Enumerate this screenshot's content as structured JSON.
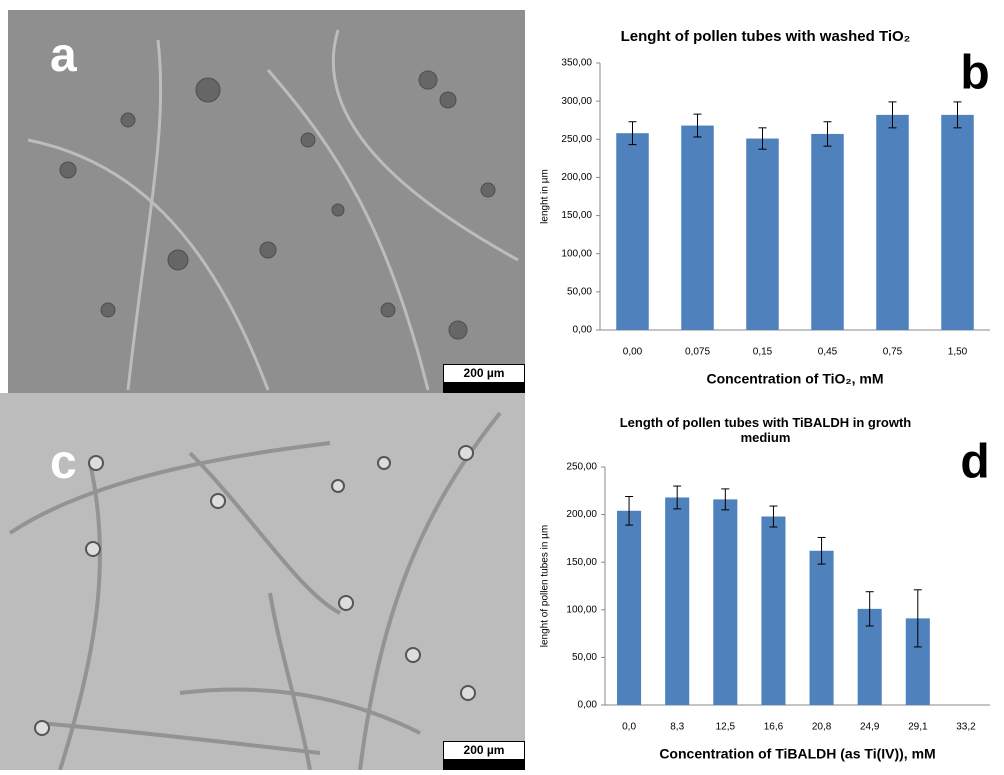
{
  "images": [
    {
      "label": "a",
      "scale_bar": "200 µm"
    },
    {
      "label": "c",
      "scale_bar": "200 µm"
    }
  ],
  "chart_data": [
    {
      "type": "bar",
      "title": "Lenght of pollen tubes with washed TiO₂",
      "panel_label": "b",
      "x_label": "Concentration of TiO₂, mM",
      "y_label": "lenght in µm",
      "categories": [
        "0,00",
        "0,075",
        "0,15",
        "0,45",
        "0,75",
        "1,50"
      ],
      "values": [
        258,
        268,
        251,
        257,
        282,
        282
      ],
      "errors": [
        15,
        15,
        14,
        16,
        17,
        17
      ],
      "color": "#4f81bd",
      "ylim": [
        0,
        350
      ],
      "yticks": [
        {
          "value": 0,
          "label": "0,00"
        },
        {
          "value": 50,
          "label": "50,00"
        },
        {
          "value": 100,
          "label": "100,00"
        },
        {
          "value": 150,
          "label": "150,00"
        },
        {
          "value": 200,
          "label": "200,00"
        },
        {
          "value": 250,
          "label": "250,00"
        },
        {
          "value": 300,
          "label": "300,00"
        },
        {
          "value": 350,
          "label": "350,00"
        }
      ],
      "grid": false
    },
    {
      "type": "bar",
      "title": "Length of pollen tubes with TiBALDH in growth medium",
      "panel_label": "d",
      "x_label": "Concentration of TiBALDH (as Ti(IV)), mM",
      "y_label": "lenght of pollen tubes in µm",
      "categories": [
        "0,0",
        "8,3",
        "12,5",
        "16,6",
        "20,8",
        "24,9",
        "29,1",
        "33,2"
      ],
      "values": [
        204,
        218,
        216,
        198,
        162,
        101,
        91,
        null
      ],
      "errors": [
        15,
        12,
        11,
        11,
        14,
        18,
        30,
        null
      ],
      "color": "#4f81bd",
      "ylim": [
        0,
        250
      ],
      "yticks": [
        {
          "value": 0,
          "label": "0,00"
        },
        {
          "value": 50,
          "label": "50,00"
        },
        {
          "value": 100,
          "label": "100,00"
        },
        {
          "value": 150,
          "label": "150,00"
        },
        {
          "value": 200,
          "label": "200,00"
        },
        {
          "value": 250,
          "label": "250,00"
        }
      ],
      "grid": false
    }
  ]
}
